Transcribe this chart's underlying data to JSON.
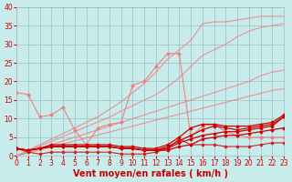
{
  "xlabel": "Vent moyen/en rafales ( km/h )",
  "x": [
    0,
    1,
    2,
    3,
    4,
    5,
    6,
    7,
    8,
    9,
    10,
    11,
    12,
    13,
    14,
    15,
    16,
    17,
    18,
    19,
    20,
    21,
    22,
    23
  ],
  "light_lines": [
    [
      0,
      0.8,
      1.6,
      2.4,
      3.2,
      4.0,
      4.8,
      5.6,
      6.4,
      7.2,
      8.0,
      8.8,
      9.6,
      10.4,
      11.2,
      12.0,
      12.8,
      13.6,
      14.4,
      15.2,
      16.0,
      16.8,
      17.6,
      18.0
    ],
    [
      0,
      1.0,
      2.0,
      3.0,
      4.0,
      5.0,
      6.0,
      7.0,
      8.0,
      9.0,
      10.0,
      11.0,
      12.0,
      13.0,
      14.0,
      15.0,
      16.0,
      17.0,
      18.0,
      19.0,
      20.0,
      21.5,
      22.5,
      23.0
    ],
    [
      0,
      1.3,
      2.6,
      3.9,
      5.2,
      6.5,
      7.8,
      9.1,
      10.4,
      12.0,
      13.5,
      15.0,
      16.5,
      18.5,
      21.0,
      24.0,
      27.0,
      28.5,
      30.0,
      32.0,
      33.5,
      34.5,
      35.0,
      35.5
    ],
    [
      0,
      1.5,
      3.0,
      4.5,
      6.0,
      7.5,
      9.0,
      10.5,
      12.5,
      14.5,
      17.0,
      19.5,
      22.5,
      26.0,
      28.5,
      31.0,
      35.5,
      36.0,
      36.0,
      36.5,
      37.0,
      37.5,
      37.5,
      37.5
    ]
  ],
  "jagged_light": [
    17.0,
    16.5,
    10.5,
    11.0,
    13.0,
    7.0,
    3.0,
    7.5,
    8.5,
    9.0,
    19.0,
    20.0,
    24.0,
    27.5,
    27.5,
    5.0,
    8.0,
    8.5,
    6.5,
    5.5,
    5.0,
    5.0,
    5.0,
    5.0
  ],
  "dark_lines": [
    [
      2.0,
      1.5,
      2.0,
      2.5,
      2.5,
      2.5,
      2.5,
      2.5,
      2.5,
      2.0,
      2.0,
      1.5,
      1.5,
      1.5,
      2.5,
      3.0,
      4.5,
      5.0,
      5.5,
      5.5,
      6.0,
      6.5,
      7.0,
      7.5
    ],
    [
      2.0,
      1.5,
      2.0,
      2.5,
      2.5,
      2.5,
      2.5,
      2.5,
      2.5,
      2.0,
      2.0,
      1.5,
      1.5,
      2.0,
      3.5,
      4.5,
      5.5,
      6.0,
      6.5,
      6.5,
      7.0,
      7.5,
      8.0,
      10.5
    ],
    [
      2.0,
      1.5,
      2.0,
      2.5,
      2.5,
      2.5,
      2.5,
      2.5,
      2.5,
      2.0,
      2.0,
      1.5,
      1.5,
      2.5,
      4.0,
      5.5,
      7.0,
      8.0,
      7.5,
      7.0,
      7.5,
      8.0,
      8.5,
      10.5
    ],
    [
      2.0,
      1.5,
      2.0,
      3.0,
      3.0,
      3.0,
      3.0,
      3.0,
      3.0,
      2.5,
      2.5,
      2.0,
      2.0,
      3.0,
      5.0,
      7.5,
      8.5,
      8.5,
      8.0,
      8.0,
      8.0,
      8.5,
      9.0,
      11.0
    ]
  ],
  "dark_jagged": [
    2.0,
    1.0,
    0.5,
    1.0,
    1.0,
    1.0,
    1.0,
    1.0,
    1.0,
    0.5,
    0.5,
    0.5,
    1.0,
    2.0,
    4.5,
    3.0,
    3.0,
    3.0,
    2.5,
    2.5,
    2.5,
    3.0,
    3.5,
    3.5
  ],
  "background_color": "#c8ecec",
  "grid_color": "#9bbebe",
  "light_line_color": "#f08080",
  "dark_line_color": "#cc0000",
  "dark_jagged_color": "#cc2222",
  "ylim": [
    0,
    40
  ],
  "xlim": [
    0,
    23
  ],
  "yticks": [
    0,
    5,
    10,
    15,
    20,
    25,
    30,
    35,
    40
  ],
  "xticks": [
    0,
    1,
    2,
    3,
    4,
    5,
    6,
    7,
    8,
    9,
    10,
    11,
    12,
    13,
    14,
    15,
    16,
    17,
    18,
    19,
    20,
    21,
    22,
    23
  ],
  "xlabel_fontsize": 7,
  "tick_fontsize": 5.5
}
